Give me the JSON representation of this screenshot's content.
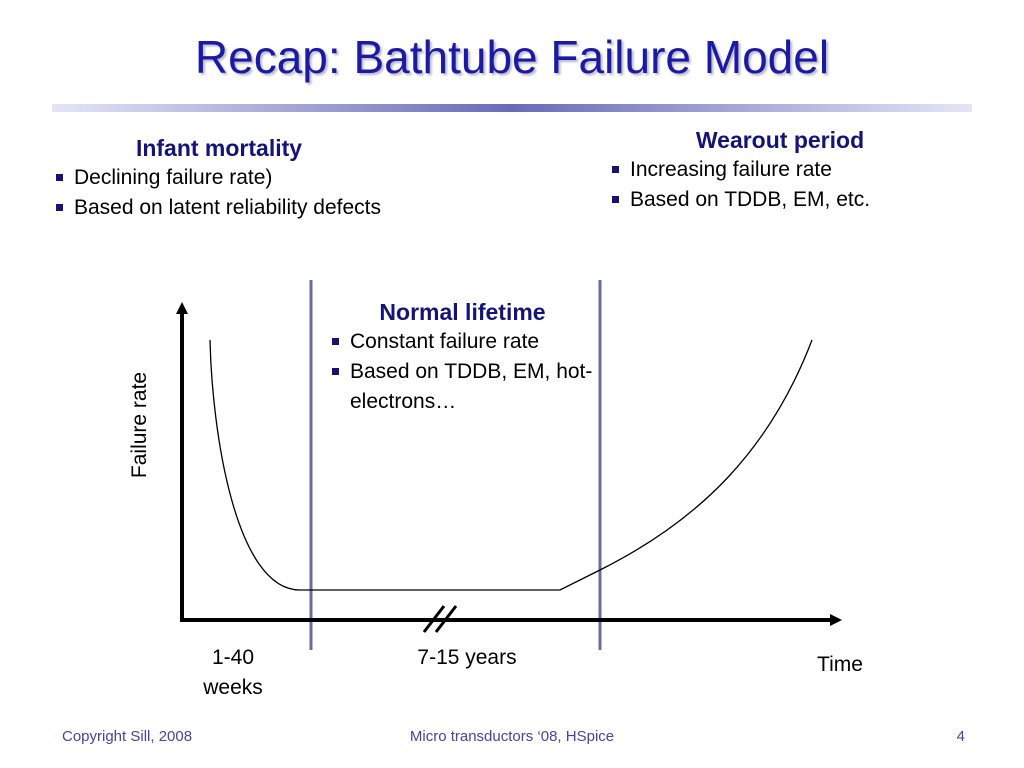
{
  "slide": {
    "title": "Recap: Bathtube Failure Model"
  },
  "infant_mortality": {
    "heading": "Infant mortality",
    "bullets": [
      "Declining failure rate)",
      "Based on latent reliability defects"
    ]
  },
  "wearout_period": {
    "heading": "Wearout period",
    "bullets": [
      "Increasing failure rate",
      "Based on TDDB, EM, etc."
    ]
  },
  "normal_lifetime": {
    "heading": "Normal  lifetime",
    "bullets": [
      "Constant failure rate",
      "Based on TDDB, EM, hot-electrons…"
    ]
  },
  "axes": {
    "y_label": "Failure rate",
    "x_label": "Time",
    "infant_duration_line1": "1-40",
    "infant_duration_line2": "weeks",
    "normal_duration": "7-15 years"
  },
  "colors": {
    "title": "#1a1aa6",
    "heading": "#13137a",
    "divider": "#6b6b9e",
    "footer": "#4444aa"
  },
  "footer": {
    "copyright": "Copyright Sill, 2008",
    "course": "Micro transductors ‘08, HSpice",
    "page_number": "4"
  }
}
